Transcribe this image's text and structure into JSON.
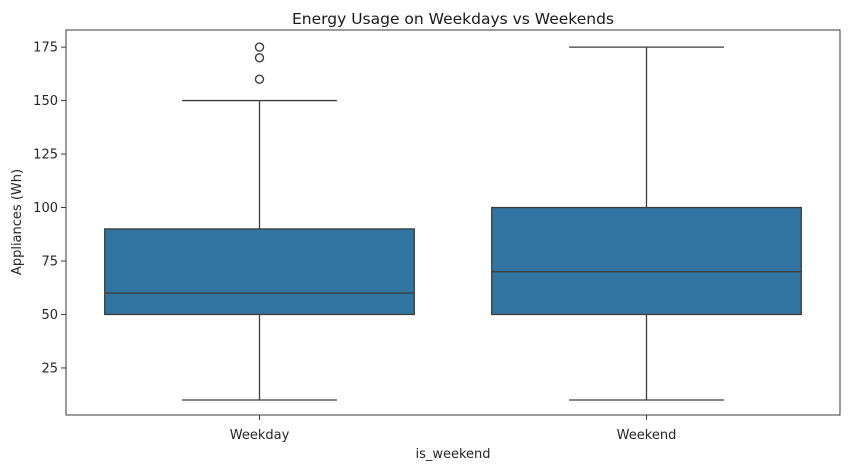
{
  "chart_data": {
    "type": "box",
    "title": "Energy Usage on Weekdays vs Weekends",
    "xlabel": "is_weekend",
    "ylabel": "Appliances (Wh)",
    "categories": [
      "Weekday",
      "Weekend"
    ],
    "ylim": [
      3,
      183
    ],
    "yticks": [
      25,
      50,
      75,
      100,
      125,
      150,
      175
    ],
    "grid": false,
    "box_color": "#3274a1",
    "line_color": "#3d3d3d",
    "boxes": [
      {
        "name": "Weekday",
        "whisker_low": 10,
        "q1": 50,
        "median": 60,
        "q3": 90,
        "whisker_high": 150,
        "outliers": [
          160,
          170,
          175
        ]
      },
      {
        "name": "Weekend",
        "whisker_low": 10,
        "q1": 50,
        "median": 70,
        "q3": 100,
        "whisker_high": 175,
        "outliers": []
      }
    ]
  }
}
